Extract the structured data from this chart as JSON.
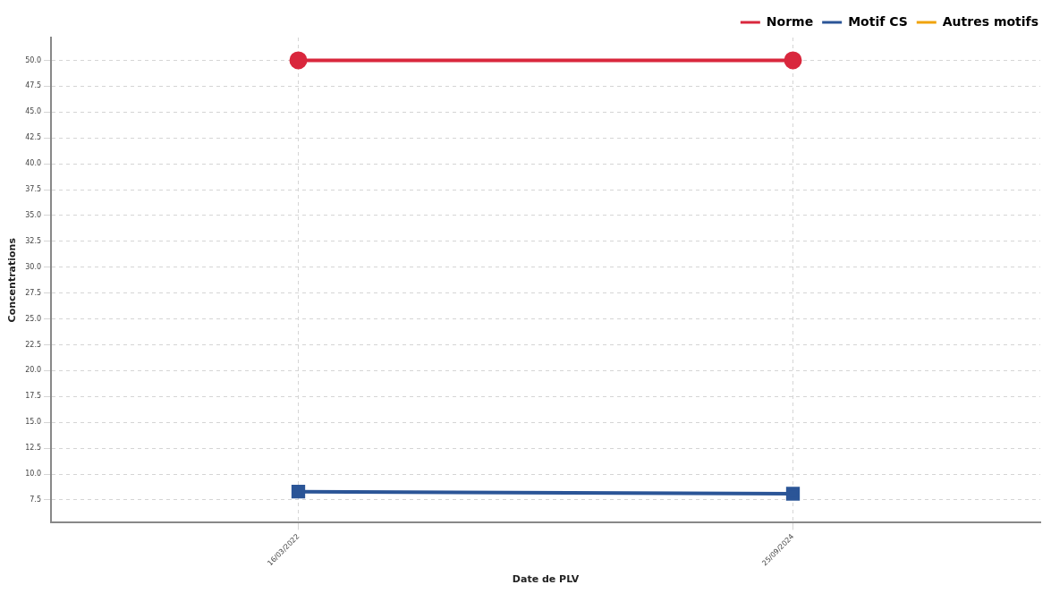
{
  "chart_data": {
    "type": "line",
    "xlabel": "Date de PLV",
    "ylabel": "Concentrations",
    "categories": [
      "16/03/2022",
      "25/09/2024"
    ],
    "series": [
      {
        "name": "Norme",
        "color": "#d9273d",
        "values": [
          50,
          50
        ],
        "marker": "circle"
      },
      {
        "name": "Motif CS",
        "color": "#2b5597",
        "values": [
          8.3,
          8.1
        ],
        "marker": "square"
      },
      {
        "name": "Autres motifs",
        "color": "#f0a30a",
        "values": [
          null,
          null
        ],
        "marker": "none"
      }
    ],
    "ylim": [
      5.3,
      52.2
    ],
    "yticks": [
      7.5,
      {
        "value": 10,
        "label": "10.0"
      },
      12.5,
      {
        "value": 15,
        "label": "15.0"
      },
      17.5,
      {
        "value": 20,
        "label": "20.0"
      },
      22.5,
      {
        "value": 25,
        "label": "25.0"
      },
      27.5,
      {
        "value": 30,
        "label": "30.0"
      },
      32.5,
      {
        "value": 35,
        "label": "35.0"
      },
      37.5,
      {
        "value": 40,
        "label": "40.0"
      },
      42.5,
      {
        "value": 45,
        "label": "45.0"
      },
      47.5,
      {
        "value": 50,
        "label": "50.0"
      }
    ],
    "grid": true,
    "legend": "top right",
    "line_style": "solid"
  }
}
